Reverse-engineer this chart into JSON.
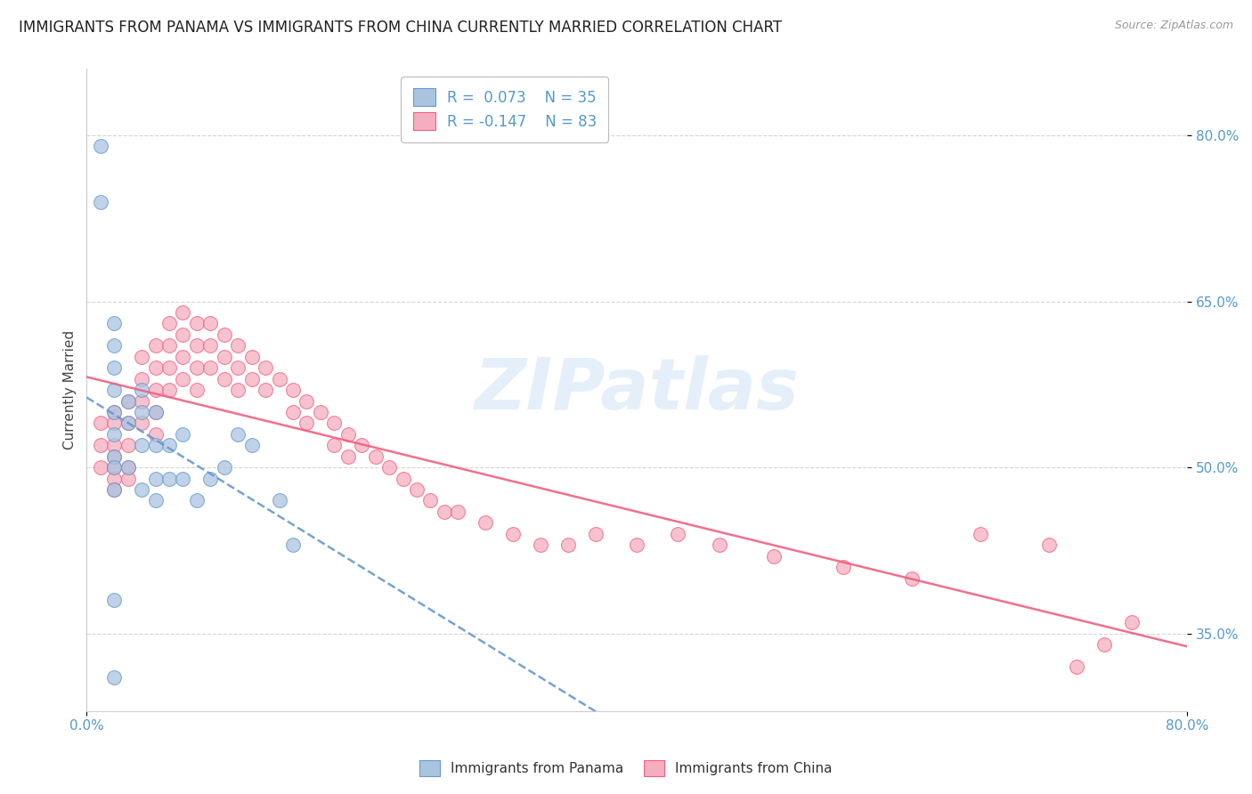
{
  "title": "IMMIGRANTS FROM PANAMA VS IMMIGRANTS FROM CHINA CURRENTLY MARRIED CORRELATION CHART",
  "source": "Source: ZipAtlas.com",
  "ylabel": "Currently Married",
  "xlim": [
    0.0,
    0.8
  ],
  "ylim": [
    0.28,
    0.86
  ],
  "ytick_labels": [
    "35.0%",
    "50.0%",
    "65.0%",
    "80.0%"
  ],
  "ytick_values": [
    0.35,
    0.5,
    0.65,
    0.8
  ],
  "xtick_labels": [
    "0.0%",
    "80.0%"
  ],
  "xtick_values": [
    0.0,
    0.8
  ],
  "panama_color": "#aac4e0",
  "china_color": "#f5aec0",
  "panama_line_color": "#6699cc",
  "china_line_color": "#f06080",
  "panama_R": 0.073,
  "panama_N": 35,
  "china_R": -0.147,
  "china_N": 83,
  "panama_scatter_x": [
    0.01,
    0.01,
    0.02,
    0.02,
    0.02,
    0.02,
    0.02,
    0.02,
    0.02,
    0.02,
    0.02,
    0.03,
    0.03,
    0.03,
    0.04,
    0.04,
    0.04,
    0.04,
    0.05,
    0.05,
    0.05,
    0.05,
    0.06,
    0.06,
    0.07,
    0.07,
    0.08,
    0.09,
    0.1,
    0.11,
    0.12,
    0.14,
    0.15,
    0.02,
    0.02
  ],
  "panama_scatter_y": [
    0.79,
    0.74,
    0.63,
    0.61,
    0.59,
    0.57,
    0.55,
    0.53,
    0.51,
    0.5,
    0.48,
    0.56,
    0.54,
    0.5,
    0.57,
    0.55,
    0.52,
    0.48,
    0.55,
    0.52,
    0.49,
    0.47,
    0.52,
    0.49,
    0.53,
    0.49,
    0.47,
    0.49,
    0.5,
    0.53,
    0.52,
    0.47,
    0.43,
    0.38,
    0.31
  ],
  "china_scatter_x": [
    0.01,
    0.01,
    0.01,
    0.02,
    0.02,
    0.02,
    0.02,
    0.02,
    0.02,
    0.02,
    0.03,
    0.03,
    0.03,
    0.03,
    0.03,
    0.04,
    0.04,
    0.04,
    0.04,
    0.05,
    0.05,
    0.05,
    0.05,
    0.05,
    0.06,
    0.06,
    0.06,
    0.06,
    0.07,
    0.07,
    0.07,
    0.07,
    0.08,
    0.08,
    0.08,
    0.08,
    0.09,
    0.09,
    0.09,
    0.1,
    0.1,
    0.1,
    0.11,
    0.11,
    0.11,
    0.12,
    0.12,
    0.13,
    0.13,
    0.14,
    0.15,
    0.15,
    0.16,
    0.16,
    0.17,
    0.18,
    0.18,
    0.19,
    0.19,
    0.2,
    0.21,
    0.22,
    0.23,
    0.24,
    0.25,
    0.26,
    0.27,
    0.29,
    0.31,
    0.33,
    0.35,
    0.37,
    0.4,
    0.43,
    0.46,
    0.5,
    0.55,
    0.6,
    0.65,
    0.7,
    0.72,
    0.74,
    0.76
  ],
  "china_scatter_y": [
    0.54,
    0.52,
    0.5,
    0.55,
    0.54,
    0.52,
    0.51,
    0.5,
    0.49,
    0.48,
    0.56,
    0.54,
    0.52,
    0.5,
    0.49,
    0.6,
    0.58,
    0.56,
    0.54,
    0.61,
    0.59,
    0.57,
    0.55,
    0.53,
    0.63,
    0.61,
    0.59,
    0.57,
    0.64,
    0.62,
    0.6,
    0.58,
    0.63,
    0.61,
    0.59,
    0.57,
    0.63,
    0.61,
    0.59,
    0.62,
    0.6,
    0.58,
    0.61,
    0.59,
    0.57,
    0.6,
    0.58,
    0.59,
    0.57,
    0.58,
    0.57,
    0.55,
    0.56,
    0.54,
    0.55,
    0.54,
    0.52,
    0.53,
    0.51,
    0.52,
    0.51,
    0.5,
    0.49,
    0.48,
    0.47,
    0.46,
    0.46,
    0.45,
    0.44,
    0.43,
    0.43,
    0.44,
    0.43,
    0.44,
    0.43,
    0.42,
    0.41,
    0.4,
    0.44,
    0.43,
    0.32,
    0.34,
    0.36
  ],
  "watermark": "ZIPatlas",
  "background_color": "#ffffff",
  "grid_color": "#cccccc",
  "title_fontsize": 12,
  "axis_label_fontsize": 11,
  "tick_fontsize": 11,
  "legend_fontsize": 12
}
